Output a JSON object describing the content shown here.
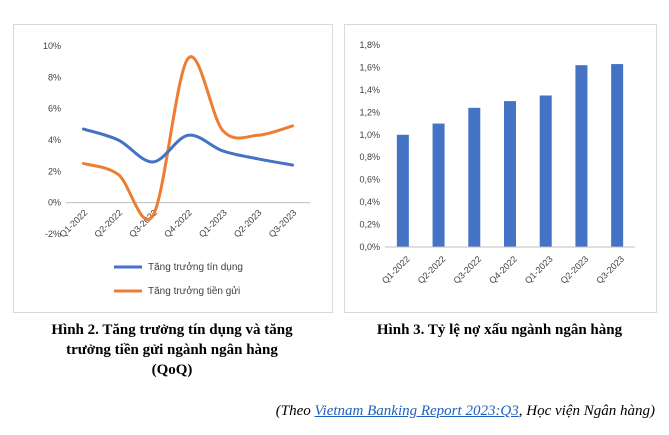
{
  "chart_data": [
    {
      "type": "line",
      "categories": [
        "Q1-2022",
        "Q2-2022",
        "Q3-2022",
        "Q4-2022",
        "Q1-2023",
        "Q2-2023",
        "Q3-2023"
      ],
      "series": [
        {
          "name": "Tăng trưởng tín dụng",
          "color": "#4472c4",
          "values": [
            4.7,
            4.0,
            2.6,
            4.3,
            3.3,
            2.8,
            2.4
          ]
        },
        {
          "name": "Tăng trưởng tiền gửi",
          "color": "#ed7d31",
          "values": [
            2.5,
            1.8,
            -0.8,
            9.2,
            4.6,
            4.3,
            4.9
          ]
        }
      ],
      "yticks": [
        "10%",
        "8%",
        "6%",
        "4%",
        "2%",
        "0%",
        "-2%"
      ],
      "ylim": [
        -2,
        10
      ],
      "grid": false,
      "legend": "bottom"
    },
    {
      "type": "bar",
      "categories": [
        "Q1-2022",
        "Q2-2022",
        "Q3-2022",
        "Q4-2022",
        "Q1-2023",
        "Q2-2023",
        "Q3-2023"
      ],
      "values": [
        1.0,
        1.1,
        1.24,
        1.3,
        1.35,
        1.62,
        1.63
      ],
      "color": "#4472c4",
      "yticks": [
        "1,8%",
        "1,6%",
        "1,4%",
        "1,2%",
        "1,0%",
        "0,8%",
        "0,6%",
        "0,4%",
        "0,2%",
        "0,0%"
      ],
      "ylim": [
        0,
        1.8
      ],
      "grid": false
    }
  ],
  "captions": {
    "left_line1": "Hình 2. Tăng trưởng tín dụng và tăng",
    "left_line2": "trưởng tiền gửi ngành ngân hàng",
    "left_line3": "(QoQ)",
    "right": "Hình 3. Tỷ lệ nợ xấu ngành ngân hàng"
  },
  "source": {
    "prefix": "(Theo ",
    "link_text": "Vietnam Banking Report 2023:Q3",
    "suffix": ", Học viện Ngân hàng)"
  }
}
